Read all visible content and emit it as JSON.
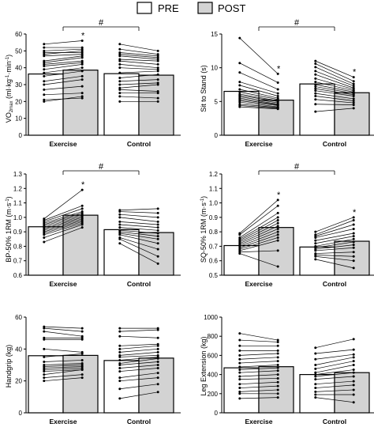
{
  "legend": [
    {
      "label": "PRE",
      "color": "#ffffff"
    },
    {
      "label": "POST",
      "color": "#d3d3d3"
    }
  ],
  "chart_data": [
    {
      "type": "bar",
      "ylabel_main": "VO",
      "ylabel_sub": "2max",
      "ylabel_units": " (ml·kg",
      "ylabel_exp1": "-1",
      "ylabel_mid": "·min",
      "ylabel_exp2": "-1",
      "ylabel_end": ")",
      "ylim": [
        0,
        60
      ],
      "yticks": [
        "0",
        "10",
        "20",
        "30",
        "40",
        "50",
        "60"
      ],
      "categories": [
        "Exercise",
        "Control"
      ],
      "series": [
        {
          "name": "PRE",
          "values": [
            36.3,
            36.5
          ]
        },
        {
          "name": "POST",
          "values": [
            38.6,
            35.6
          ]
        }
      ],
      "individuals": [
        {
          "pre": [
            54,
            52,
            50,
            49,
            48,
            47,
            44,
            43,
            42,
            41,
            39,
            37,
            35,
            32,
            30,
            27,
            24,
            21,
            20
          ],
          "post": [
            56,
            52,
            51,
            49,
            50,
            48,
            47,
            46,
            44,
            43,
            42,
            40,
            38,
            35,
            33,
            29,
            25,
            22,
            23
          ]
        },
        {
          "pre": [
            54,
            51,
            49,
            48,
            47,
            45,
            44,
            42,
            40,
            37,
            34,
            32,
            30,
            28,
            27,
            25,
            23,
            20
          ],
          "post": [
            50,
            48,
            47,
            46,
            45,
            44,
            42,
            40,
            39,
            38,
            36,
            33,
            31,
            30,
            26,
            25,
            22,
            20
          ]
        }
      ],
      "annotations": {
        "star": "*",
        "hash": "#"
      },
      "star_on": [
        [
          false,
          true
        ],
        [
          false,
          false
        ]
      ]
    },
    {
      "type": "bar",
      "ylabel_main": "Sit to Stand (s)",
      "ylim": [
        0,
        15
      ],
      "yticks": [
        "0",
        "5",
        "10",
        "15"
      ],
      "categories": [
        "Exercise",
        "Control"
      ],
      "series": [
        {
          "name": "PRE",
          "values": [
            6.5,
            7.6
          ]
        },
        {
          "name": "POST",
          "values": [
            5.2,
            6.3
          ]
        }
      ],
      "individuals": [
        {
          "pre": [
            14.4,
            10.7,
            9.3,
            7.9,
            7.4,
            6.8,
            6.4,
            6.1,
            5.9,
            5.7,
            5.5,
            5.3,
            5.1,
            4.9,
            4.6,
            4.4,
            4.2
          ],
          "post": [
            9.1,
            7.8,
            6.8,
            6.2,
            5.8,
            5.5,
            5.3,
            5.1,
            5.0,
            4.8,
            4.6,
            4.5,
            4.4,
            4.2,
            4.1,
            4.0,
            3.9
          ]
        },
        {
          "pre": [
            11.0,
            10.6,
            10.1,
            9.5,
            9.0,
            8.4,
            7.9,
            7.5,
            7.2,
            6.9,
            6.6,
            6.2,
            5.8,
            5.3,
            4.6,
            3.5
          ],
          "post": [
            8.6,
            8.0,
            7.6,
            7.3,
            7.0,
            6.8,
            6.6,
            6.4,
            6.2,
            6.0,
            5.8,
            5.4,
            5.1,
            4.8,
            4.5,
            4.0
          ]
        }
      ],
      "annotations": {
        "star": "*",
        "hash": "#"
      },
      "star_on": [
        [
          false,
          true
        ],
        [
          false,
          true
        ]
      ]
    },
    {
      "type": "bar",
      "ylabel_main": "BP-50% 1RM (m·s",
      "ylabel_exp1": "-1",
      "ylabel_end": ")",
      "ylim": [
        0.6,
        1.3
      ],
      "yticks": [
        "0.6",
        "0.7",
        "0.8",
        "0.9",
        "1.0",
        "1.1",
        "1.2",
        "1.3"
      ],
      "categories": [
        "Exercise",
        "Control"
      ],
      "series": [
        {
          "name": "PRE",
          "values": [
            0.935,
            0.915
          ]
        },
        {
          "name": "POST",
          "values": [
            1.015,
            0.895
          ]
        }
      ],
      "individuals": [
        {
          "pre": [
            0.99,
            0.98,
            0.97,
            0.96,
            0.95,
            0.94,
            0.93,
            0.92,
            0.91,
            0.9,
            0.89,
            0.88,
            0.86,
            0.83
          ],
          "post": [
            1.19,
            1.08,
            1.06,
            1.04,
            1.03,
            1.02,
            1.01,
            1.0,
            0.99,
            0.98,
            0.97,
            0.96,
            0.95,
            0.93
          ]
        },
        {
          "pre": [
            1.05,
            1.04,
            1.02,
            1.0,
            0.97,
            0.95,
            0.93,
            0.91,
            0.9,
            0.89,
            0.88,
            0.86,
            0.85,
            0.82
          ],
          "post": [
            1.06,
            1.03,
            1.0,
            0.97,
            0.95,
            0.93,
            0.91,
            0.89,
            0.87,
            0.85,
            0.82,
            0.78,
            0.73,
            0.68
          ]
        }
      ],
      "annotations": {
        "star": "*",
        "hash": "#"
      },
      "star_on": [
        [
          false,
          true
        ],
        [
          false,
          false
        ]
      ]
    },
    {
      "type": "bar",
      "ylabel_main": "SQ-50% 1RM (m·s",
      "ylabel_exp1": "-1",
      "ylabel_end": ")",
      "ylim": [
        0.5,
        1.2
      ],
      "yticks": [
        "0.5",
        "0.6",
        "0.7",
        "0.8",
        "0.9",
        "1.0",
        "1.1",
        "1.2"
      ],
      "categories": [
        "Exercise",
        "Control"
      ],
      "series": [
        {
          "name": "PRE",
          "values": [
            0.705,
            0.695
          ]
        },
        {
          "name": "POST",
          "values": [
            0.83,
            0.735
          ]
        }
      ],
      "individuals": [
        {
          "pre": [
            0.79,
            0.78,
            0.76,
            0.75,
            0.74,
            0.73,
            0.72,
            0.71,
            0.7,
            0.69,
            0.68,
            0.67,
            0.66,
            0.65
          ],
          "post": [
            1.02,
            0.98,
            0.93,
            0.9,
            0.88,
            0.86,
            0.84,
            0.82,
            0.8,
            0.78,
            0.76,
            0.74,
            0.67,
            0.56
          ]
        },
        {
          "pre": [
            0.8,
            0.78,
            0.77,
            0.76,
            0.74,
            0.72,
            0.7,
            0.69,
            0.68,
            0.67,
            0.65,
            0.64,
            0.63,
            0.61
          ],
          "post": [
            0.9,
            0.88,
            0.85,
            0.82,
            0.79,
            0.77,
            0.75,
            0.73,
            0.71,
            0.69,
            0.66,
            0.63,
            0.6,
            0.55
          ]
        }
      ],
      "annotations": {
        "star": "*",
        "hash": "#"
      },
      "star_on": [
        [
          false,
          true
        ],
        [
          false,
          true
        ]
      ]
    },
    {
      "type": "bar",
      "ylabel_main": "Handgrip (kg)",
      "ylim": [
        0,
        60
      ],
      "yticks": [
        "0",
        "20",
        "40",
        "60"
      ],
      "categories": [
        "Exercise",
        "Control"
      ],
      "series": [
        {
          "name": "PRE",
          "values": [
            35.8,
            32.8
          ]
        },
        {
          "name": "POST",
          "values": [
            36.0,
            34.3
          ]
        }
      ],
      "individuals": [
        {
          "pre": [
            54,
            53,
            51,
            47,
            46,
            40,
            35,
            32,
            30,
            29,
            28,
            27,
            26,
            24,
            22,
            20
          ],
          "post": [
            53,
            51,
            48,
            47,
            46,
            38,
            37,
            33,
            31,
            30,
            29,
            28,
            27,
            27,
            24,
            22
          ]
        },
        {
          "pre": [
            53,
            51,
            48,
            42,
            40,
            38,
            36,
            35,
            33,
            31,
            30,
            28,
            26,
            22,
            20,
            15,
            9
          ],
          "post": [
            53,
            52,
            47,
            43,
            42,
            40,
            38,
            36,
            35,
            34,
            32,
            30,
            28,
            25,
            22,
            18,
            13
          ]
        }
      ],
      "annotations": {
        "star": "*",
        "hash": "#"
      },
      "star_on": [
        [
          false,
          false
        ],
        [
          false,
          false
        ]
      ]
    },
    {
      "type": "bar",
      "ylabel_main": "Leg Extension (kg)",
      "ylim": [
        0,
        1000
      ],
      "yticks": [
        "0",
        "200",
        "400",
        "600",
        "800",
        "1000"
      ],
      "categories": [
        "Exercise",
        "Control"
      ],
      "series": [
        {
          "name": "PRE",
          "values": [
            470,
            400
          ]
        },
        {
          "name": "POST",
          "values": [
            482,
            420
          ]
        }
      ],
      "individuals": [
        {
          "pre": [
            830,
            760,
            700,
            650,
            600,
            560,
            520,
            480,
            450,
            420,
            380,
            350,
            300,
            260,
            220,
            200,
            150
          ],
          "post": [
            760,
            740,
            700,
            650,
            620,
            580,
            540,
            500,
            470,
            440,
            400,
            360,
            320,
            280,
            240,
            200,
            160
          ]
        },
        {
          "pre": [
            680,
            620,
            560,
            500,
            460,
            420,
            400,
            380,
            350,
            300,
            260,
            220,
            190,
            160
          ],
          "post": [
            770,
            660,
            610,
            580,
            540,
            500,
            450,
            420,
            380,
            330,
            290,
            240,
            190,
            110
          ]
        }
      ],
      "annotations": {
        "star": "*",
        "hash": "#"
      },
      "star_on": [
        [
          false,
          false
        ],
        [
          false,
          false
        ]
      ]
    }
  ]
}
